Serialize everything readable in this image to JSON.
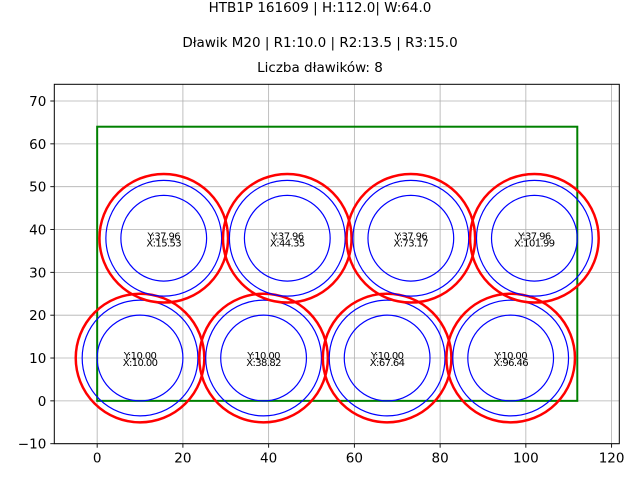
{
  "chart_data": {
    "type": "scatter",
    "title_lines": [
      "HTB1P 161609 | H:112.0| W:64.0",
      "Dławik M20 | R1:10.0 | R2:13.5 | R3:15.0",
      "Liczba dławików: 8"
    ],
    "xlabel": "",
    "ylabel": "",
    "xlim": [
      -10,
      121.8
    ],
    "ylim": [
      -10,
      73.9
    ],
    "xticks": [
      0,
      20,
      40,
      60,
      80,
      100,
      120
    ],
    "yticks": [
      -10,
      0,
      10,
      20,
      30,
      40,
      50,
      60,
      70
    ],
    "grid": true,
    "aspect": "equal",
    "enclosure": {
      "x": 0,
      "y": 0,
      "width": 112.0,
      "height": 64.0,
      "color": "#008000"
    },
    "radii": {
      "R1": 10.0,
      "R2": 13.5,
      "R3": 15.0
    },
    "radius_colors": {
      "R1": "#0000ff",
      "R2": "#0000ff",
      "R3": "#ff0000"
    },
    "points": [
      {
        "x": 10.0,
        "y": 10.0,
        "label_y": "Y:10.00",
        "label_x": "X:10.00"
      },
      {
        "x": 38.82,
        "y": 10.0,
        "label_y": "Y:10.00",
        "label_x": "X:38.82"
      },
      {
        "x": 67.64,
        "y": 10.0,
        "label_y": "Y:10.00",
        "label_x": "X:67.64"
      },
      {
        "x": 96.46,
        "y": 10.0,
        "label_y": "Y:10.00",
        "label_x": "X:96.46"
      },
      {
        "x": 15.53,
        "y": 37.96,
        "label_y": "Y:37.96",
        "label_x": "X:15.53"
      },
      {
        "x": 44.35,
        "y": 37.96,
        "label_y": "Y:37.96",
        "label_x": "X:44.35"
      },
      {
        "x": 73.17,
        "y": 37.96,
        "label_y": "Y:37.96",
        "label_x": "X:73.17"
      },
      {
        "x": 101.99,
        "y": 37.96,
        "label_y": "Y:37.96",
        "label_x": "X:101.99"
      }
    ]
  },
  "header": {
    "line1": "HTB1P 161609 | H:112.0| W:64.0",
    "line2": "Dławik M20 | R1:10.0 | R2:13.5 | R3:15.0",
    "line3": "Liczba dławików: 8"
  }
}
